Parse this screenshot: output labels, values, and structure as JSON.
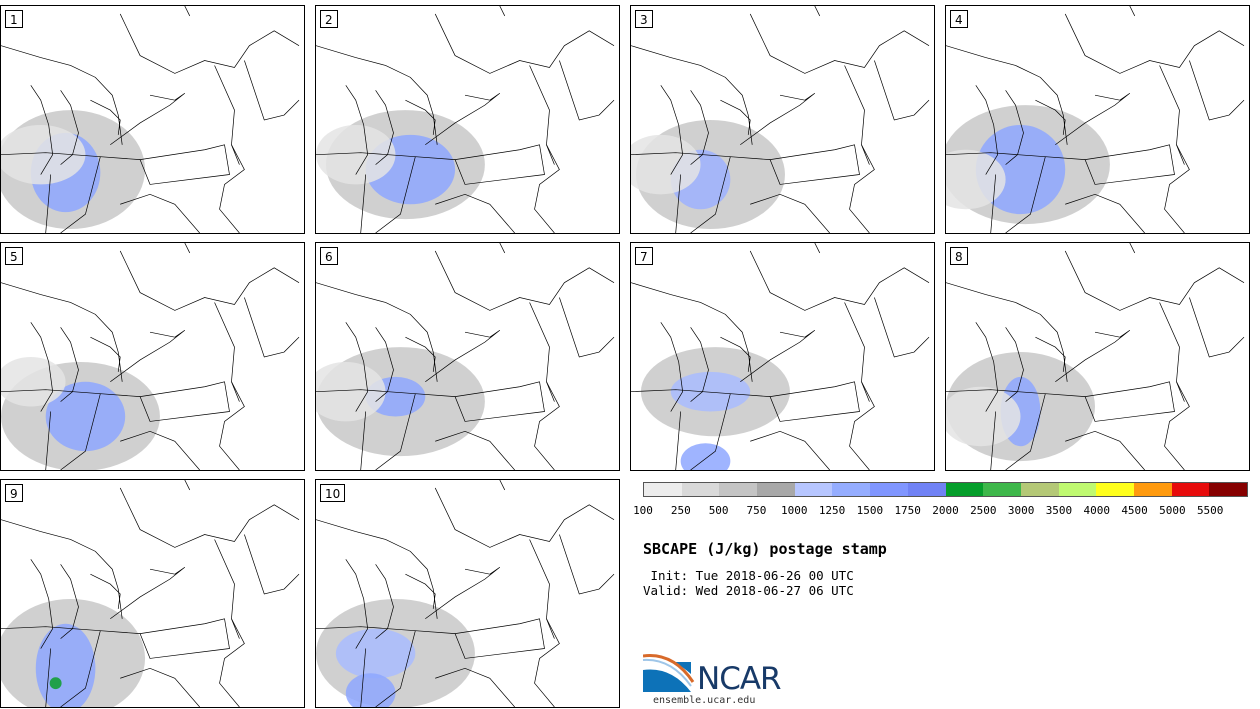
{
  "panels": [
    {
      "label": "1"
    },
    {
      "label": "2"
    },
    {
      "label": "3"
    },
    {
      "label": "4"
    },
    {
      "label": "5"
    },
    {
      "label": "6"
    },
    {
      "label": "7"
    },
    {
      "label": "8"
    },
    {
      "label": "9"
    },
    {
      "label": "10"
    }
  ],
  "colorbar": {
    "colors": [
      "#ededed",
      "#d9d9d9",
      "#c4c4c4",
      "#a8a8a8",
      "#b7c6ff",
      "#95adff",
      "#8096ff",
      "#7082f5",
      "#059e2b",
      "#3eb74a",
      "#b4c876",
      "#bff970",
      "#ffff1c",
      "#ff9a0e",
      "#e70b0b",
      "#860000"
    ],
    "ticks": [
      "100",
      "250",
      "500",
      "750",
      "1000",
      "1250",
      "1500",
      "1750",
      "2000",
      "2500",
      "3000",
      "3500",
      "4000",
      "4500",
      "5000",
      "5500"
    ]
  },
  "title": "SBCAPE (J/kg) postage stamp",
  "init": " Init: Tue 2018-06-26 00 UTC",
  "valid": "Valid: Wed 2018-06-27 06 UTC",
  "logo": {
    "text": "NCAR",
    "website": "ensemble.ucar.edu"
  },
  "colors": {
    "gray_light": "#e6e6e6",
    "gray_mid": "#c8c8c8",
    "gray_dark": "#aaaaaa",
    "blue_light": "#a9bcff",
    "blue_mid": "#7f99ff",
    "green": "#0b9e2b"
  }
}
